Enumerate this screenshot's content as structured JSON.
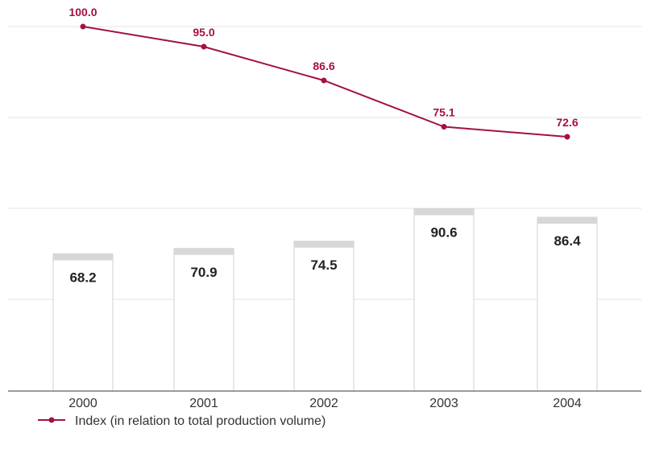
{
  "chart_data": {
    "type": "bar+line",
    "categories": [
      "2000",
      "2001",
      "2002",
      "2003",
      "2004"
    ],
    "bars": {
      "values": [
        68.2,
        70.9,
        74.5,
        90.6,
        86.4
      ]
    },
    "line": {
      "name": "Index (in relation to total production volume)",
      "values": [
        100.0,
        95.0,
        86.6,
        75.1,
        72.6
      ],
      "labels": [
        "100.0",
        "95.0",
        "86.6",
        "75.1",
        "72.6"
      ]
    },
    "bar_labels": [
      "68.2",
      "70.9",
      "74.5",
      "90.6",
      "86.4"
    ],
    "legend": {
      "position": "bottom-left"
    },
    "colors": {
      "line": "#a3123f",
      "bar_fill": "#ffffff",
      "bar_outline": "#d2d2d2",
      "bar_cap": "#d7d7d7",
      "grid": "#e3e3e3"
    },
    "grid": true
  }
}
